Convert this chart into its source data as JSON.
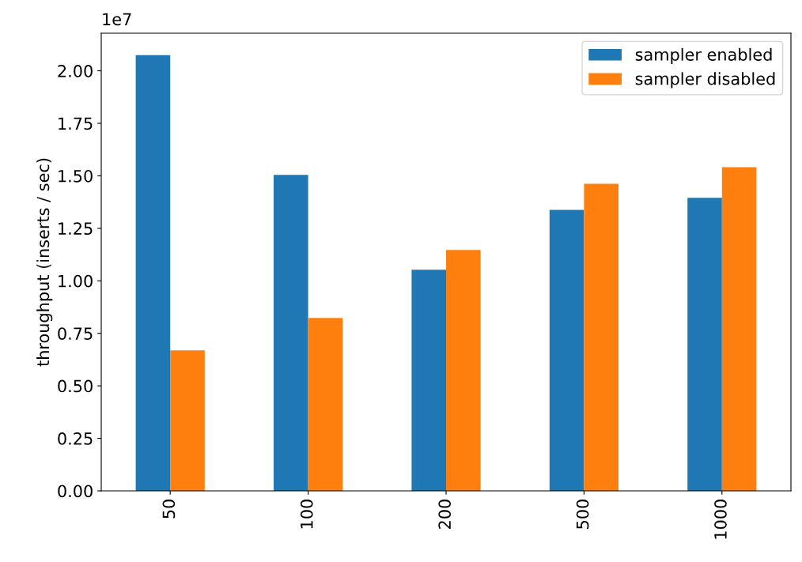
{
  "chart_data": {
    "type": "bar",
    "ylabel": "throughput (inserts / sec)",
    "categories": [
      "50",
      "100",
      "200",
      "500",
      "1000"
    ],
    "series": [
      {
        "name": "sampler enabled",
        "color": "#1f77b4",
        "values": [
          2.075,
          1.504,
          1.053,
          1.338,
          1.395
        ]
      },
      {
        "name": "sampler disabled",
        "color": "#ff7f0e",
        "values": [
          0.669,
          0.823,
          1.147,
          1.462,
          1.541
        ]
      }
    ],
    "ylim": [
      0,
      2.179
    ],
    "yticks": [
      {
        "value": 0,
        "label": "0.00"
      },
      0.25,
      {
        "value": 0.5,
        "label": "0.50"
      },
      0.75,
      {
        "value": 1,
        "label": "1.00"
      },
      1.25,
      {
        "value": 1.5,
        "label": "1.50"
      },
      1.75,
      {
        "value": 2,
        "label": "2.00"
      }
    ],
    "annotations": [
      "1e7"
    ],
    "legend": "top right",
    "grid": false
  }
}
